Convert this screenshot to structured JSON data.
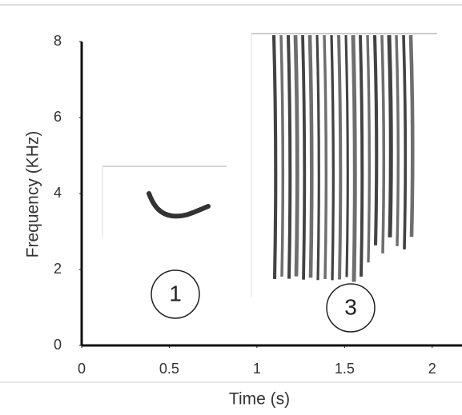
{
  "chart_data": {
    "type": "line",
    "x_label": "Time (s)",
    "y_label": "Frequency (KHz)",
    "xlim": [
      0,
      2.17
    ],
    "xticks": [
      0,
      0.5,
      1,
      1.5,
      2
    ],
    "ylim": [
      0,
      8
    ],
    "yticks": [
      0,
      2,
      4,
      6,
      8
    ],
    "annotations": [
      "1",
      "3"
    ]
  }
}
